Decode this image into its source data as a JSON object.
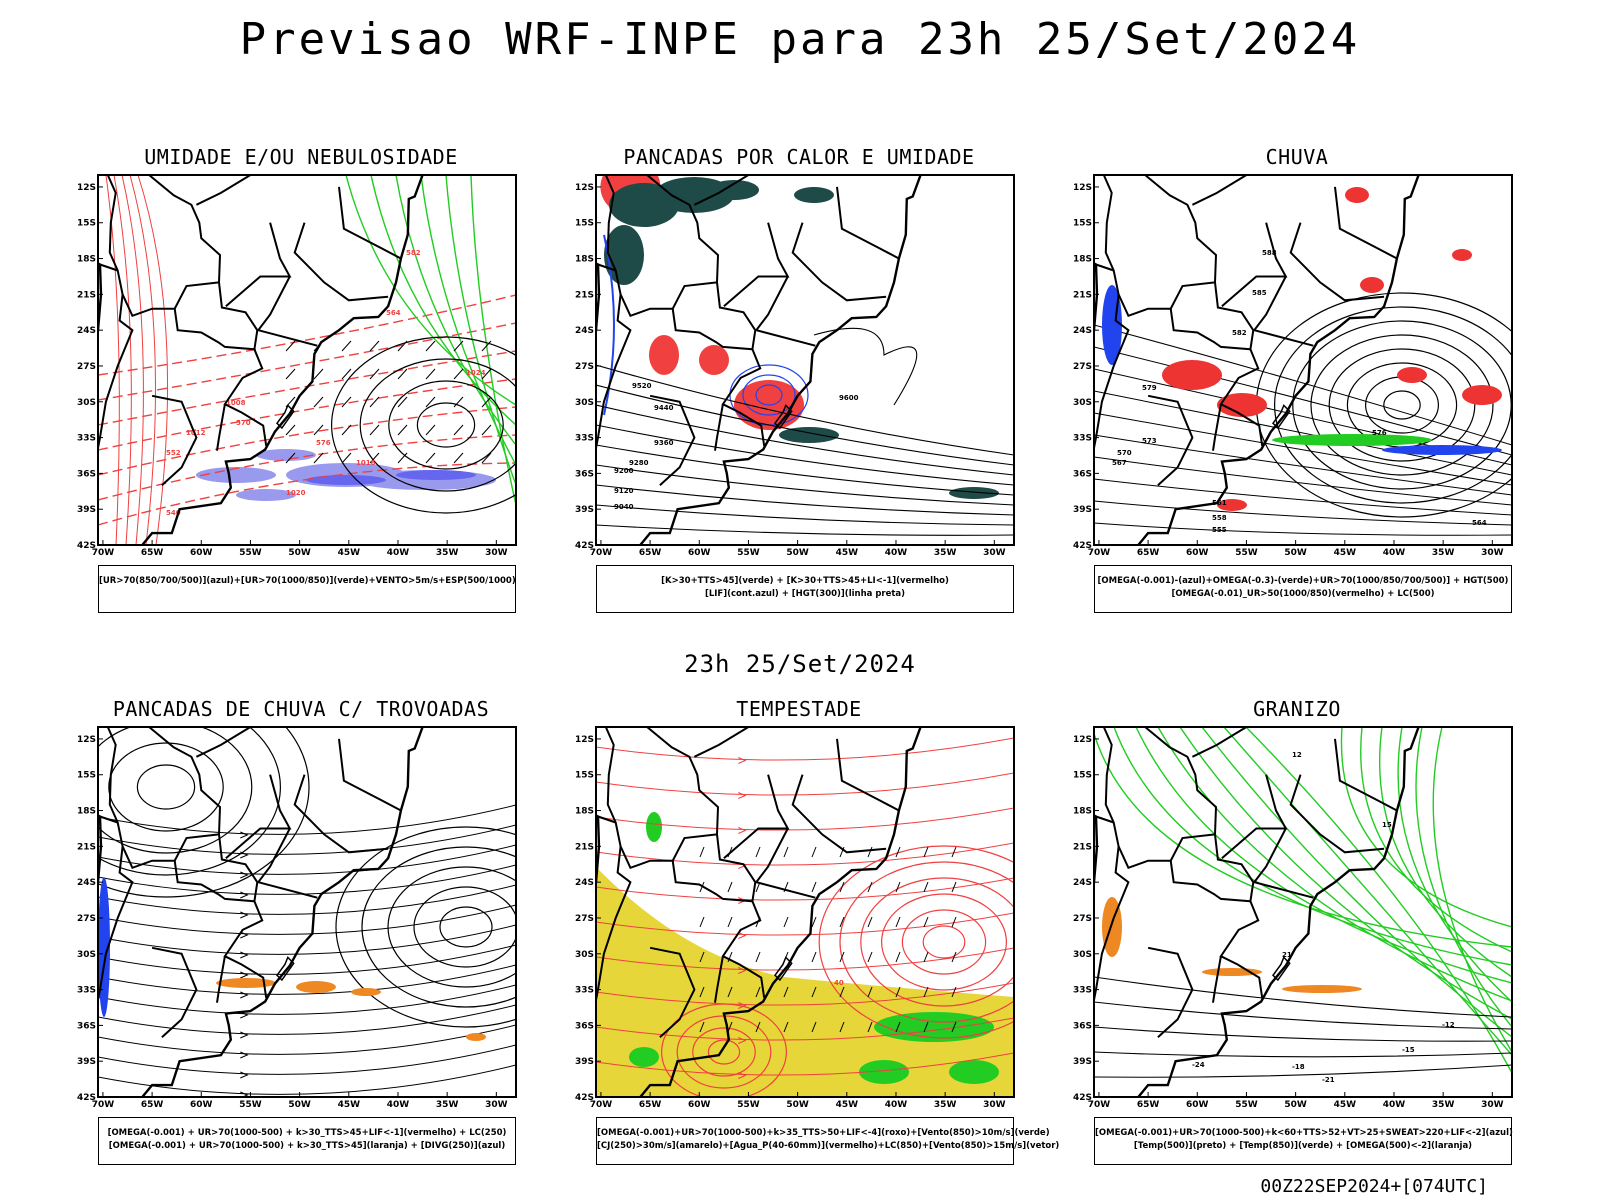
{
  "header": {
    "title": "Previsao WRF-INPE  para 23h 25/Set/2024",
    "subtitle": "23h 25/Set/2024",
    "footer": "00Z22SEP2024+[074UTC]"
  },
  "axes": {
    "lat_labels": [
      "12S",
      "15S",
      "18S",
      "21S",
      "24S",
      "27S",
      "30S",
      "33S",
      "36S",
      "39S",
      "42S"
    ],
    "lon_labels": [
      "70W",
      "65W",
      "60W",
      "55W",
      "50W",
      "45W",
      "40W",
      "35W",
      "30W"
    ]
  },
  "panels": [
    {
      "id": "umidade",
      "title": "UMIDADE E/OU NEBULOSIDADE",
      "legend": [
        "[UR>70(850/700/500)](azul)+[UR>70(1000/850)](verde)+VENTO>5m/s+ESP(500/1000)"
      ],
      "contour_labels": [
        "1012",
        "1020",
        "1008",
        "1016",
        "1024",
        "552",
        "570",
        "576",
        "564",
        "582",
        "540"
      ]
    },
    {
      "id": "pancadas-calor",
      "title": "PANCADAS POR CALOR E UMIDADE",
      "legend": [
        "[K>30+TTS>45](verde) + [K>30+TTS>45+LI<-1](vermelho)",
        "[LIF](cont.azul) + [HGT(300)](linha preta)"
      ],
      "contour_labels": [
        "9600",
        "9520",
        "9440",
        "9360",
        "9280",
        "9200",
        "9120",
        "9040"
      ]
    },
    {
      "id": "chuva",
      "title": "CHUVA",
      "legend": [
        "[OMEGA(-0.001)-(azul)+OMEGA(-0.3)-(verde)+UR>70(1000/850/700/500)] + HGT(500)",
        "[OMEGA(-0.01)_UR>50(1000/850)(vermelho) + LC(500)"
      ],
      "contour_labels": [
        "588",
        "585",
        "582",
        "579",
        "576",
        "573",
        "570",
        "567",
        "564",
        "561",
        "558",
        "555"
      ]
    },
    {
      "id": "trovoadas",
      "title": "PANCADAS DE CHUVA C/ TROVOADAS",
      "legend": [
        "[OMEGA(-0.001) + UR>70(1000-500) + k>30_TTS>45+LIF<-1](vermelho) + LC(250)",
        "[OMEGA(-0.001) + UR>70(1000-500) + k>30_TTS>45](laranja) + [DIVG(250)](azul)"
      ],
      "contour_labels": []
    },
    {
      "id": "tempestade",
      "title": "TEMPESTADE",
      "legend": [
        "[OMEGA(-0.001)+UR>70(1000-500)+k>35_TTS>50+LIF<-4](roxo)+[Vento(850)>10m/s](verde)",
        "[CJ(250)>30m/s](amarelo)+[Agua_P(40-60mm)](vermelho)+LC(850)+[Vento(850)>15m/s](vetor)"
      ],
      "contour_labels": [
        "40"
      ]
    },
    {
      "id": "granizo",
      "title": "GRANIZO",
      "legend": [
        "[OMEGA(-0.001)+UR>70(1000-500)+k<60+TTS>52+VT>25+SWEAT>220+LIF<-2](azul)",
        "[Temp(500)](preto) + [Temp(850)](verde) + [OMEGA(500)<-2](laranja)"
      ],
      "contour_labels": [
        "-12",
        "-15",
        "-18",
        "-21",
        "-24",
        "21",
        "15",
        "12"
      ]
    }
  ],
  "colors": {
    "red": "#f04040",
    "green": "#22cc22",
    "blue": "#2244ee",
    "lightblue": "#9999ee",
    "darkteal": "#1e4a48",
    "yellow": "#e6d63a",
    "orange": "#ee8822",
    "salmon": "#ee3333"
  }
}
